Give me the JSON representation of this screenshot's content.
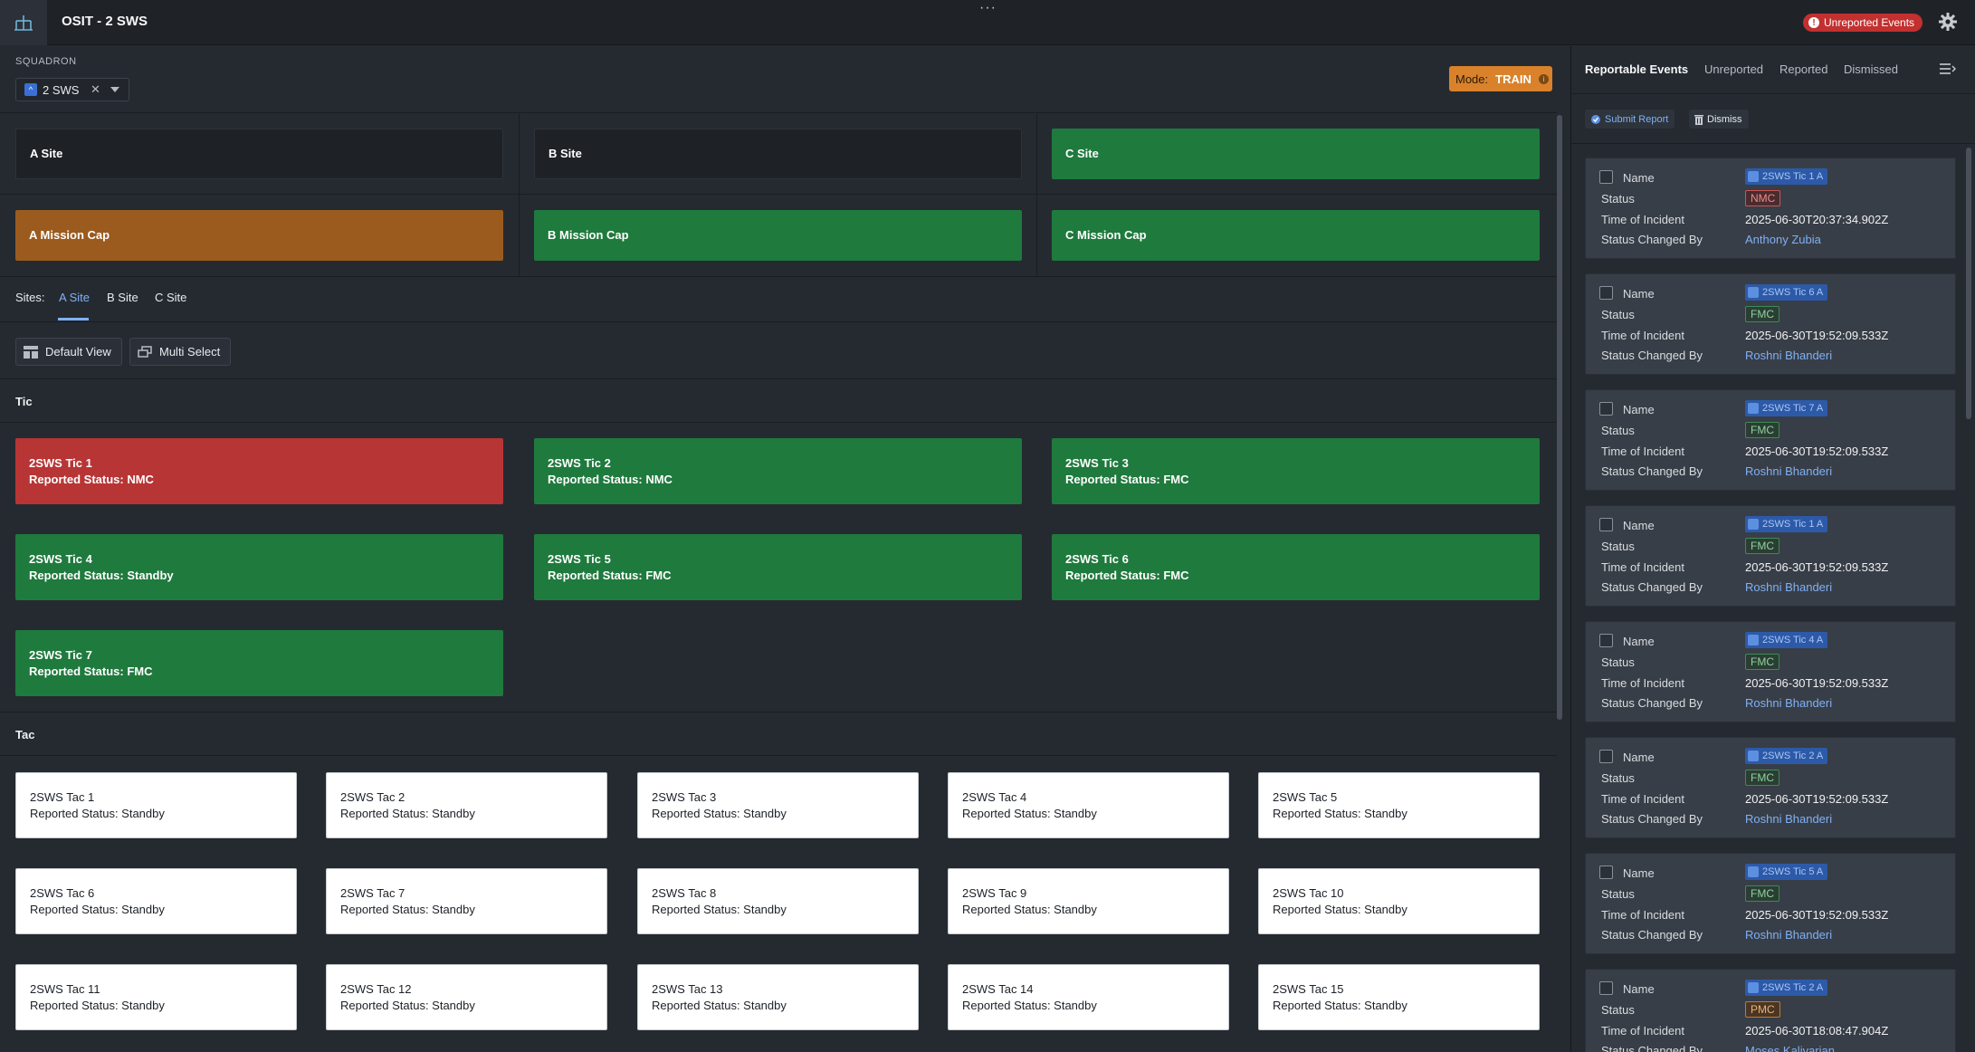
{
  "header": {
    "title": "OSIT - 2 SWS",
    "more": "···",
    "unreported_badge": "Unreported Events"
  },
  "squadron": {
    "label": "SQUADRON",
    "selected": "2 SWS"
  },
  "mode": {
    "label": "Mode:",
    "value": "TRAIN"
  },
  "sites_row": [
    {
      "label": "A Site",
      "color": "dark"
    },
    {
      "label": "B Site",
      "color": "dark"
    },
    {
      "label": "C Site",
      "color": "green"
    }
  ],
  "mission_row": [
    {
      "label": "A Mission Cap",
      "color": "orange"
    },
    {
      "label": "B Mission Cap",
      "color": "green"
    },
    {
      "label": "C Mission Cap",
      "color": "green"
    }
  ],
  "sites_nav": {
    "label": "Sites:",
    "tabs": [
      "A Site",
      "B Site",
      "C Site"
    ],
    "active": "A Site"
  },
  "view_buttons": {
    "default_view": "Default View",
    "multi_select": "Multi Select"
  },
  "tic": {
    "title": "Tic",
    "items": [
      {
        "name": "2SWS Tic 1",
        "status": "Reported Status: NMC",
        "color": "red"
      },
      {
        "name": "2SWS Tic 2",
        "status": "Reported Status: NMC",
        "color": "green"
      },
      {
        "name": "2SWS Tic 3",
        "status": "Reported Status: FMC",
        "color": "green"
      },
      {
        "name": "2SWS Tic 4",
        "status": "Reported Status: Standby",
        "color": "green"
      },
      {
        "name": "2SWS Tic 5",
        "status": "Reported Status: FMC",
        "color": "green"
      },
      {
        "name": "2SWS Tic 6",
        "status": "Reported Status: FMC",
        "color": "green"
      },
      {
        "name": "2SWS Tic 7",
        "status": "Reported Status: FMC",
        "color": "green"
      }
    ]
  },
  "tac": {
    "title": "Tac",
    "items": [
      {
        "name": "2SWS Tac 1",
        "status": "Reported Status: Standby"
      },
      {
        "name": "2SWS Tac 2",
        "status": "Reported Status: Standby"
      },
      {
        "name": "2SWS Tac 3",
        "status": "Reported Status: Standby"
      },
      {
        "name": "2SWS Tac 4",
        "status": "Reported Status: Standby"
      },
      {
        "name": "2SWS Tac 5",
        "status": "Reported Status: Standby"
      },
      {
        "name": "2SWS Tac 6",
        "status": "Reported Status: Standby"
      },
      {
        "name": "2SWS Tac 7",
        "status": "Reported Status: Standby"
      },
      {
        "name": "2SWS Tac 8",
        "status": "Reported Status: Standby"
      },
      {
        "name": "2SWS Tac 9",
        "status": "Reported Status: Standby"
      },
      {
        "name": "2SWS Tac 10",
        "status": "Reported Status: Standby"
      },
      {
        "name": "2SWS Tac 11",
        "status": "Reported Status: Standby"
      },
      {
        "name": "2SWS Tac 12",
        "status": "Reported Status: Standby"
      },
      {
        "name": "2SWS Tac 13",
        "status": "Reported Status: Standby"
      },
      {
        "name": "2SWS Tac 14",
        "status": "Reported Status: Standby"
      },
      {
        "name": "2SWS Tac 15",
        "status": "Reported Status: Standby"
      }
    ]
  },
  "panel": {
    "tabs": [
      "Reportable Events",
      "Unreported",
      "Reported",
      "Dismissed"
    ],
    "submit_label": "Submit Report",
    "dismiss_label": "Dismiss",
    "field_labels": {
      "name": "Name",
      "status": "Status",
      "time": "Time of Incident",
      "changed_by": "Status Changed By"
    },
    "events": [
      {
        "chip": "2SWS Tic 1 A",
        "status": "NMC",
        "time": "2025-06-30T20:37:34.902Z",
        "by": "Anthony Zubia"
      },
      {
        "chip": "2SWS Tic 6 A",
        "status": "FMC",
        "time": "2025-06-30T19:52:09.533Z",
        "by": "Roshni Bhanderi"
      },
      {
        "chip": "2SWS Tic 7 A",
        "status": "FMC",
        "time": "2025-06-30T19:52:09.533Z",
        "by": "Roshni Bhanderi"
      },
      {
        "chip": "2SWS Tic 1 A",
        "status": "FMC",
        "time": "2025-06-30T19:52:09.533Z",
        "by": "Roshni Bhanderi"
      },
      {
        "chip": "2SWS Tic 4 A",
        "status": "FMC",
        "time": "2025-06-30T19:52:09.533Z",
        "by": "Roshni Bhanderi"
      },
      {
        "chip": "2SWS Tic 2 A",
        "status": "FMC",
        "time": "2025-06-30T19:52:09.533Z",
        "by": "Roshni Bhanderi"
      },
      {
        "chip": "2SWS Tic 5 A",
        "status": "FMC",
        "time": "2025-06-30T19:52:09.533Z",
        "by": "Roshni Bhanderi"
      },
      {
        "chip": "2SWS Tic 2 A",
        "status": "PMC",
        "time": "2025-06-30T18:08:47.904Z",
        "by": "Moses Kalivarian"
      }
    ]
  }
}
